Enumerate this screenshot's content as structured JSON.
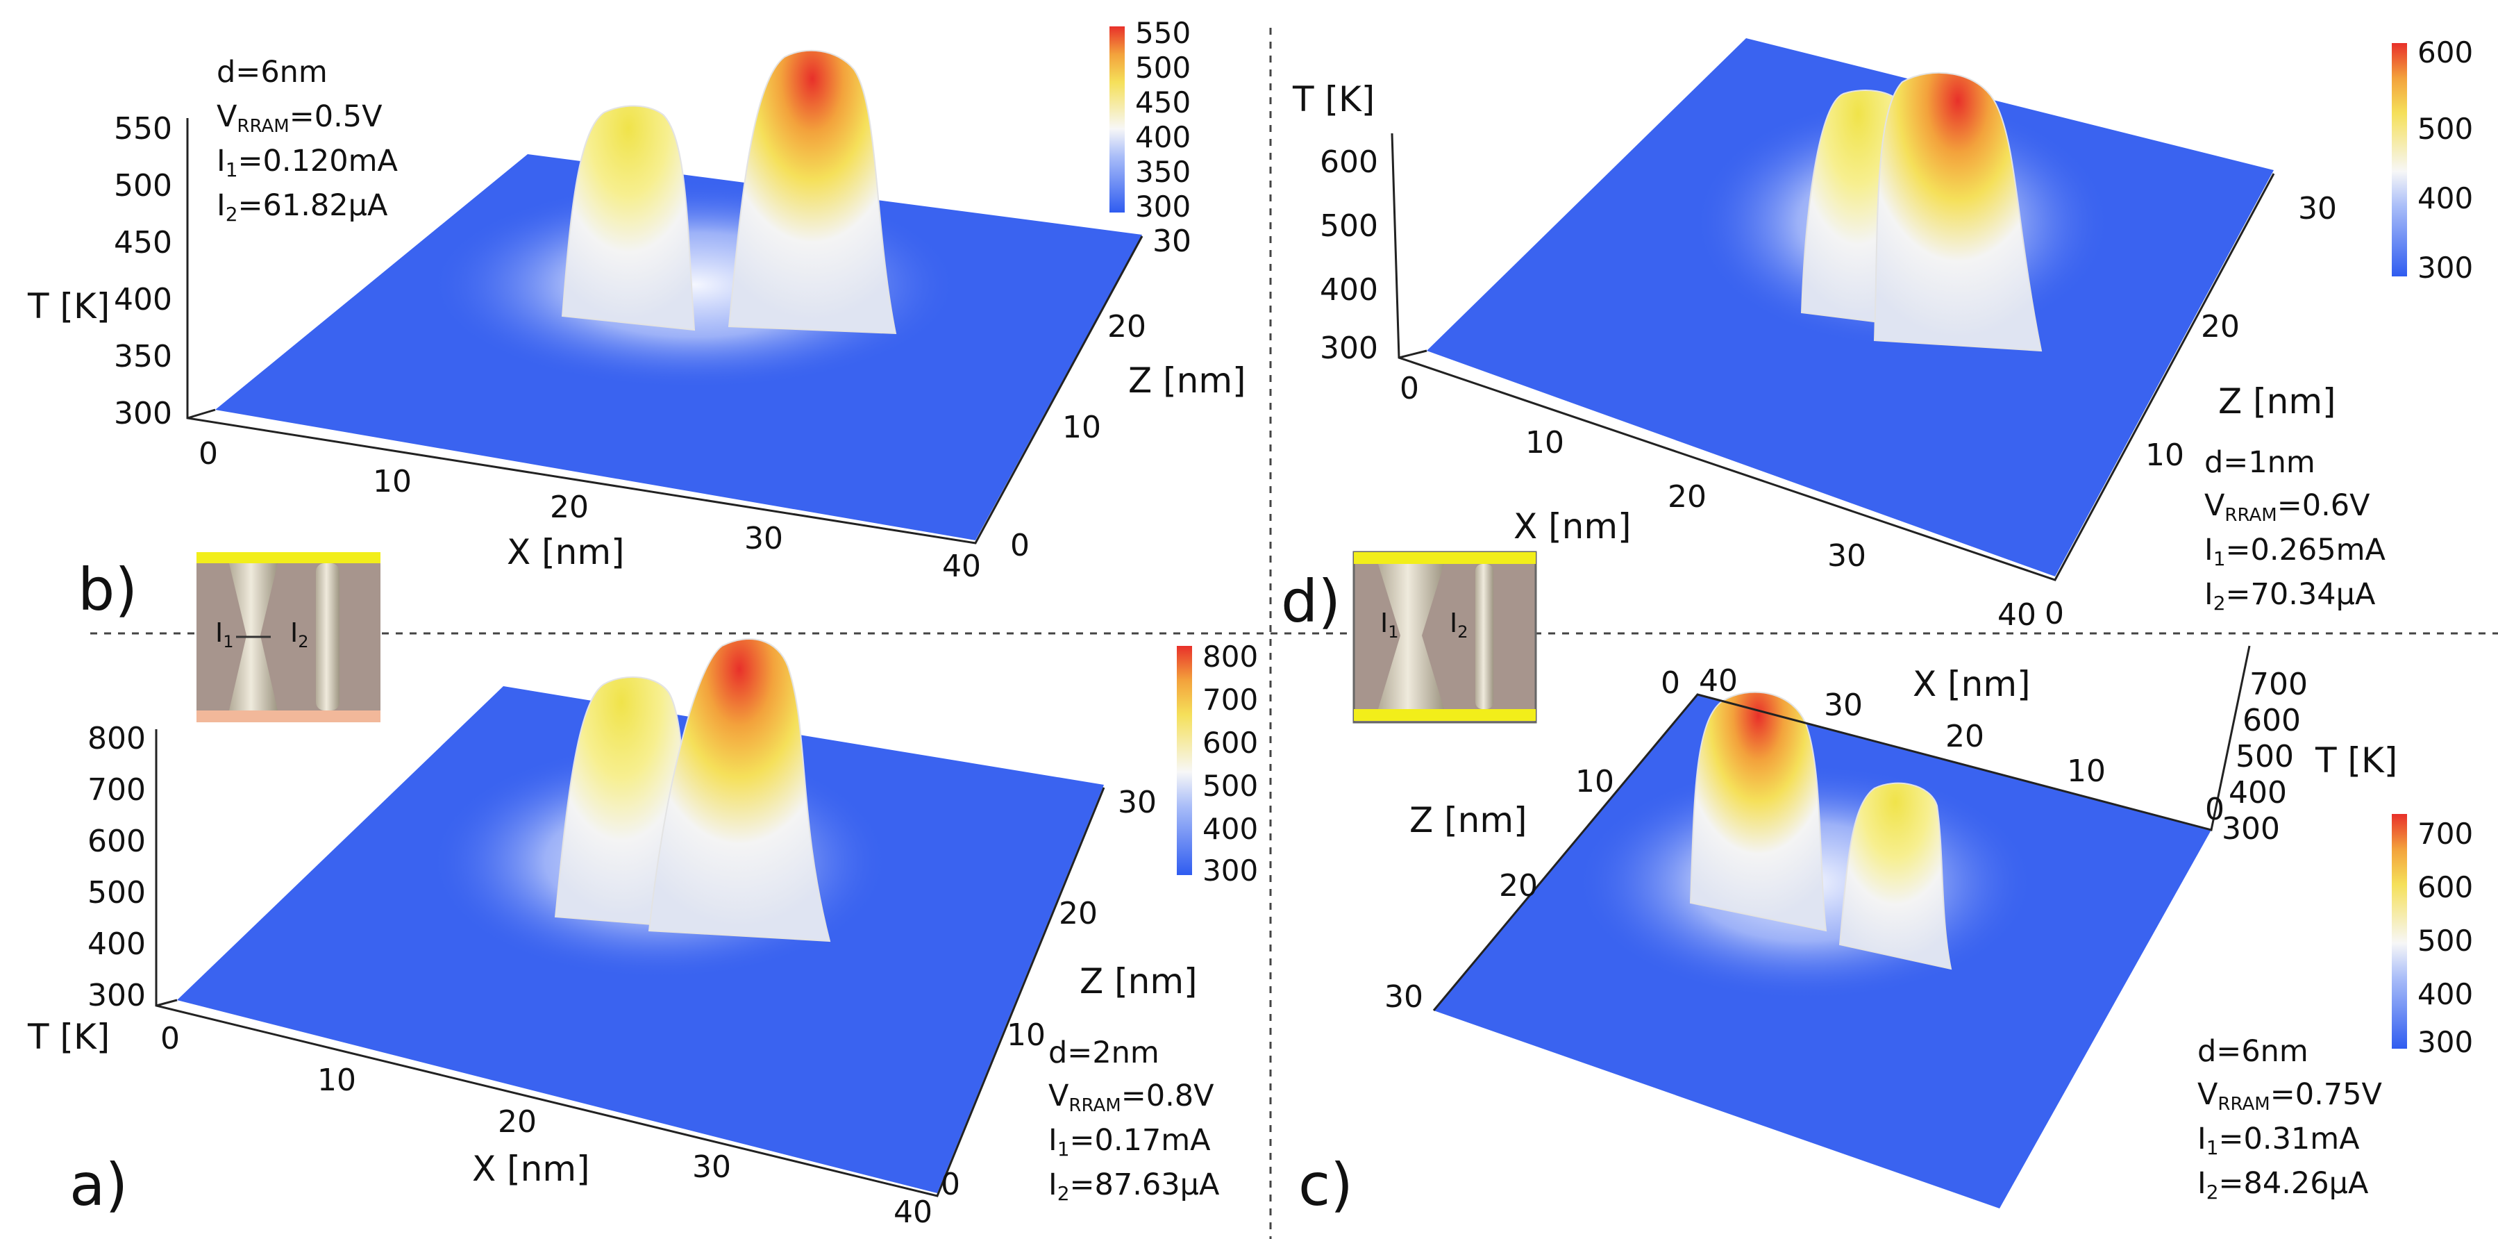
{
  "figure": {
    "panels": [
      {
        "id": "b",
        "letter": "b)",
        "inset_label": "",
        "params": {
          "d": "d=6nm",
          "v_pre": "V",
          "v_sub": "RRAM",
          "v_post": "=0.5V",
          "i1_pre": "I",
          "i1_sub": "1",
          "i1_post": "=0.120mA",
          "i2_pre": "I",
          "i2_sub": "2",
          "i2_post": "=61.82μA"
        },
        "t_ticks": [
          "550",
          "500",
          "450",
          "400",
          "350",
          "300"
        ],
        "x_ticks": [
          "0",
          "10",
          "20",
          "30",
          "40"
        ],
        "z_ticks": [
          "0",
          "10",
          "20",
          "30"
        ],
        "colorbar_ticks": [
          "550",
          "500",
          "450",
          "400",
          "350",
          "300"
        ]
      },
      {
        "id": "d",
        "letter": "d)",
        "params": {
          "d": "d=1nm",
          "v_pre": "V",
          "v_sub": "RRAM",
          "v_post": "=0.6V",
          "i1_pre": "I",
          "i1_sub": "1",
          "i1_post": "=0.265mA",
          "i2_pre": "I",
          "i2_sub": "2",
          "i2_post": "=70.34μA"
        },
        "t_ticks": [
          "600",
          "500",
          "400",
          "300"
        ],
        "x_ticks": [
          "0",
          "10",
          "20",
          "30",
          "40"
        ],
        "z_ticks": [
          "0",
          "10",
          "20",
          "30"
        ],
        "colorbar_ticks": [
          "600",
          "500",
          "400",
          "300"
        ]
      },
      {
        "id": "a",
        "letter": "a)",
        "params": {
          "d": "d=2nm",
          "v_pre": "V",
          "v_sub": "RRAM",
          "v_post": "=0.8V",
          "i1_pre": "I",
          "i1_sub": "1",
          "i1_post": "=0.17mA",
          "i2_pre": "I",
          "i2_sub": "2",
          "i2_post": "=87.63μA"
        },
        "t_ticks": [
          "800",
          "700",
          "600",
          "500",
          "400",
          "300"
        ],
        "x_ticks": [
          "0",
          "10",
          "20",
          "30",
          "40"
        ],
        "z_ticks": [
          "0",
          "10",
          "20",
          "30"
        ],
        "colorbar_ticks": [
          "800",
          "700",
          "600",
          "500",
          "400",
          "300"
        ]
      },
      {
        "id": "c",
        "letter": "c)",
        "params": {
          "d": "d=6nm",
          "v_pre": "V",
          "v_sub": "RRAM",
          "v_post": "=0.75V",
          "i1_pre": "I",
          "i1_sub": "1",
          "i1_post": "=0.31mA",
          "i2_pre": "I",
          "i2_sub": "2",
          "i2_post": "=84.26μA"
        },
        "t_ticks": [
          "700",
          "600",
          "500",
          "400",
          "300"
        ],
        "x_ticks": [
          "40",
          "30",
          "20",
          "10",
          "0"
        ],
        "z_ticks": [
          "0",
          "10",
          "20",
          "30"
        ],
        "colorbar_ticks": [
          "700",
          "600",
          "500",
          "400",
          "300"
        ]
      }
    ],
    "axis_labels": {
      "t": "T [K]",
      "x": "X [nm]",
      "z": "Z [nm]"
    },
    "inset_labels": {
      "i1": "I",
      "i1_sub": "1",
      "i2": "I",
      "i2_sub": "2"
    },
    "colors": {
      "plane": "#3a63f0",
      "hot": "#e8302a",
      "warm": "#f5c535",
      "white": "#f4f4f4",
      "electrode": "#f2ee1a",
      "oxide": "#a7958d",
      "filament": "#ddd7c8"
    }
  },
  "chart_data": [
    {
      "type": "surface",
      "panel": "b",
      "title": "",
      "zlabel": "T [K]",
      "xlabel": "X [nm]",
      "ylabel": "Z [nm]",
      "xlim": [
        0,
        40
      ],
      "ylim": [
        0,
        30
      ],
      "zlim": [
        300,
        550
      ],
      "colorbar_range": [
        300,
        550
      ],
      "peaks": [
        {
          "name": "I1 filament",
          "x": 12,
          "z": 15,
          "T": 475
        },
        {
          "name": "I2 filament",
          "x": 20,
          "z": 15,
          "T": 550
        }
      ],
      "baseline_T": 300
    },
    {
      "type": "surface",
      "panel": "d",
      "title": "",
      "zlabel": "T [K]",
      "xlabel": "X [nm]",
      "ylabel": "Z [nm]",
      "xlim": [
        0,
        40
      ],
      "ylim": [
        0,
        30
      ],
      "zlim": [
        300,
        600
      ],
      "colorbar_range": [
        300,
        600
      ],
      "peaks": [
        {
          "name": "I1 filament",
          "x": 17,
          "z": 15,
          "T": 540
        },
        {
          "name": "I2 filament",
          "x": 20,
          "z": 15,
          "T": 600
        }
      ],
      "baseline_T": 300
    },
    {
      "type": "surface",
      "panel": "a",
      "title": "",
      "zlabel": "T [K]",
      "xlabel": "X [nm]",
      "ylabel": "Z [nm]",
      "xlim": [
        0,
        40
      ],
      "ylim": [
        0,
        30
      ],
      "zlim": [
        300,
        800
      ],
      "colorbar_range": [
        300,
        800
      ],
      "peaks": [
        {
          "name": "I1 filament",
          "x": 15,
          "z": 15,
          "T": 640
        },
        {
          "name": "I2 filament",
          "x": 20,
          "z": 15,
          "T": 800
        }
      ],
      "baseline_T": 300
    },
    {
      "type": "surface",
      "panel": "c",
      "title": "",
      "zlabel": "T [K]",
      "xlabel": "X [nm]",
      "ylabel": "Z [nm]",
      "xlim": [
        0,
        40
      ],
      "ylim": [
        0,
        30
      ],
      "zlim": [
        300,
        700
      ],
      "colorbar_range": [
        300,
        700
      ],
      "peaks": [
        {
          "name": "I1 filament",
          "x": 30,
          "z": 12,
          "T": 700
        },
        {
          "name": "I2 filament",
          "x": 17,
          "z": 12,
          "T": 560
        }
      ],
      "baseline_T": 300
    }
  ]
}
